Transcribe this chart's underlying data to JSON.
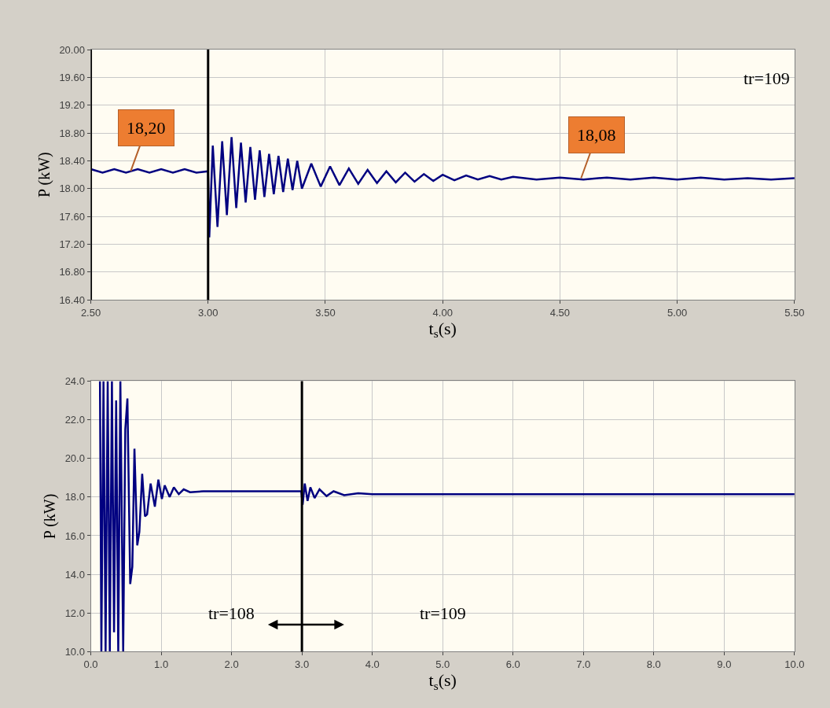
{
  "chart_data": [
    {
      "type": "line",
      "xlabel": "t$_{s}$(s)",
      "ylabel": "P (kW)",
      "grid": true,
      "line_style": "solid",
      "xlim": [
        2.5,
        5.5
      ],
      "xticks": [
        {
          "value": 2.5,
          "label": "2.50"
        },
        {
          "value": 3.0,
          "label": "3.00"
        },
        {
          "value": 3.5,
          "label": "3.50"
        },
        {
          "value": 4.0,
          "label": "4.00"
        },
        {
          "value": 4.5,
          "label": "4.50"
        },
        {
          "value": 5.0,
          "label": "5.00"
        },
        {
          "value": 5.5,
          "label": "5.50"
        }
      ],
      "ylim": [
        16.4,
        20.0
      ],
      "yticks": [
        {
          "value": 16.4,
          "label": "16.40"
        },
        {
          "value": 16.8,
          "label": "16.80"
        },
        {
          "value": 17.2,
          "label": "17.20"
        },
        {
          "value": 17.6,
          "label": "17.60"
        },
        {
          "value": 18.0,
          "label": "18.00"
        },
        {
          "value": 18.4,
          "label": "18.40"
        },
        {
          "value": 18.8,
          "label": "18.80"
        },
        {
          "value": 19.2,
          "label": "19.20"
        },
        {
          "value": 19.6,
          "label": "19.60"
        },
        {
          "value": 20.0,
          "label": "20.00"
        }
      ],
      "series": [
        {
          "color": "#000080",
          "x": [
            2.5,
            2.55,
            2.6,
            2.65,
            2.7,
            2.75,
            2.8,
            2.85,
            2.9,
            2.95,
            3.0,
            3.005,
            3.02,
            3.04,
            3.06,
            3.08,
            3.1,
            3.12,
            3.14,
            3.16,
            3.18,
            3.2,
            3.22,
            3.24,
            3.26,
            3.28,
            3.3,
            3.32,
            3.34,
            3.36,
            3.38,
            3.4,
            3.44,
            3.48,
            3.52,
            3.56,
            3.6,
            3.64,
            3.68,
            3.72,
            3.76,
            3.8,
            3.84,
            3.88,
            3.92,
            3.96,
            4.0,
            4.05,
            4.1,
            4.15,
            4.2,
            4.25,
            4.3,
            4.4,
            4.5,
            4.6,
            4.7,
            4.8,
            4.9,
            5.0,
            5.1,
            5.2,
            5.3,
            5.4,
            5.5
          ],
          "values": [
            18.28,
            18.23,
            18.28,
            18.23,
            18.28,
            18.23,
            18.28,
            18.23,
            18.28,
            18.23,
            18.25,
            17.3,
            18.62,
            17.45,
            18.68,
            17.62,
            18.74,
            17.72,
            18.66,
            17.8,
            18.6,
            17.84,
            18.55,
            17.88,
            18.5,
            17.92,
            18.47,
            17.95,
            18.43,
            17.98,
            18.4,
            18.0,
            18.36,
            18.03,
            18.32,
            18.05,
            18.29,
            18.07,
            18.27,
            18.08,
            18.25,
            18.09,
            18.23,
            18.1,
            18.21,
            18.11,
            18.2,
            18.12,
            18.19,
            18.13,
            18.18,
            18.13,
            18.17,
            18.13,
            18.16,
            18.13,
            18.16,
            18.13,
            18.16,
            18.13,
            18.16,
            18.13,
            18.15,
            18.13,
            18.15
          ]
        }
      ],
      "ref_lines": [
        {
          "axis": "x",
          "value": 2.5,
          "color": "#000000"
        },
        {
          "axis": "x",
          "value": 3.0,
          "color": "#000000"
        }
      ],
      "annotations": [
        {
          "text": "18,20",
          "x": 2.67,
          "y": 18.25
        },
        {
          "text": "18,08",
          "x": 4.59,
          "y": 18.15
        },
        "tr=109"
      ]
    },
    {
      "type": "line",
      "xlabel": "t$_{s}$(s)",
      "ylabel": "P (kW)",
      "grid": true,
      "line_style": "solid",
      "xlim": [
        0,
        10
      ],
      "xticks": [
        {
          "value": 0,
          "label": "0.0"
        },
        {
          "value": 1,
          "label": "1.0"
        },
        {
          "value": 2,
          "label": "2.0"
        },
        {
          "value": 3,
          "label": "3.0"
        },
        {
          "value": 4,
          "label": "4.0"
        },
        {
          "value": 5,
          "label": "5.0"
        },
        {
          "value": 6,
          "label": "6.0"
        },
        {
          "value": 7,
          "label": "7.0"
        },
        {
          "value": 8,
          "label": "8.0"
        },
        {
          "value": 9,
          "label": "9.0"
        },
        {
          "value": 10,
          "label": "10.0"
        }
      ],
      "ylim": [
        10,
        24
      ],
      "yticks": [
        {
          "value": 10,
          "label": "10.0"
        },
        {
          "value": 12,
          "label": "12.0"
        },
        {
          "value": 14,
          "label": "14.0"
        },
        {
          "value": 16,
          "label": "16.0"
        },
        {
          "value": 18,
          "label": "18.0"
        },
        {
          "value": 20,
          "label": "20.0"
        },
        {
          "value": 22,
          "label": "22.0"
        },
        {
          "value": 24,
          "label": "24.0"
        }
      ],
      "series": [
        {
          "color": "#000080",
          "x": [
            0.13,
            0.15,
            0.18,
            0.21,
            0.24,
            0.27,
            0.3,
            0.33,
            0.36,
            0.39,
            0.42,
            0.46,
            0.49,
            0.52,
            0.56,
            0.59,
            0.62,
            0.66,
            0.69,
            0.73,
            0.77,
            0.8,
            0.85,
            0.91,
            0.96,
            1.01,
            1.05,
            1.12,
            1.18,
            1.25,
            1.32,
            1.41,
            1.6,
            2.0,
            2.5,
            2.99,
            3.01,
            3.04,
            3.08,
            3.12,
            3.18,
            3.25,
            3.35,
            3.45,
            3.6,
            3.8,
            4.0,
            5.0,
            6.0,
            7.0,
            8.0,
            9.0,
            10.0
          ],
          "values": [
            24,
            10,
            24,
            10,
            24,
            10,
            24,
            11.0,
            23.0,
            10,
            24,
            10,
            21.5,
            23.1,
            13.5,
            14.4,
            20.5,
            15.5,
            16.2,
            19.2,
            17.0,
            17.1,
            18.7,
            17.5,
            18.9,
            17.9,
            18.6,
            18.0,
            18.5,
            18.15,
            18.4,
            18.25,
            18.3,
            18.3,
            18.3,
            18.3,
            17.6,
            18.7,
            17.8,
            18.5,
            17.95,
            18.4,
            18.05,
            18.3,
            18.1,
            18.2,
            18.15,
            18.15,
            18.15,
            18.15,
            18.15,
            18.15,
            18.15
          ]
        }
      ],
      "ref_lines": [
        {
          "axis": "x",
          "value": 3.0,
          "color": "#000000"
        }
      ],
      "annotations": [
        "tr=108",
        "tr=109"
      ]
    }
  ]
}
